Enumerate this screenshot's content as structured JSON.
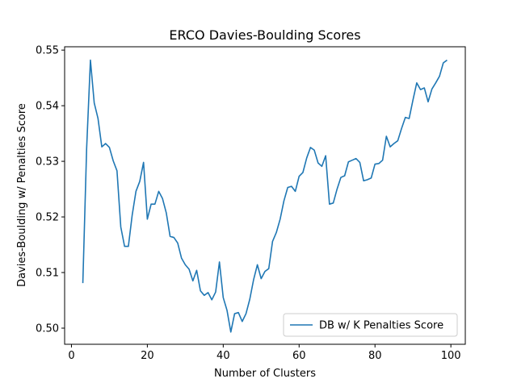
{
  "chart_data": {
    "type": "line",
    "title": "ERCO Davies-Boulding Scores",
    "xlabel": "Number of Clusters",
    "ylabel": "Davies-Boulding w/ Penalties Score",
    "xlim": [
      -1.8,
      103.8
    ],
    "ylim": [
      0.4971,
      0.5506
    ],
    "xticks": [
      0,
      20,
      40,
      60,
      80,
      100
    ],
    "yticks": [
      0.5,
      0.51,
      0.52,
      0.53,
      0.54,
      0.55
    ],
    "ytick_labels": [
      "0.50",
      "0.51",
      "0.52",
      "0.53",
      "0.54",
      "0.55"
    ],
    "grid": false,
    "legend_position": "lower-right",
    "series": [
      {
        "name": "DB w/ K Penalties Score",
        "color": "#1f77b4",
        "x": [
          3,
          4,
          5,
          6,
          7,
          8,
          9,
          10,
          11,
          12,
          13,
          14,
          15,
          16,
          17,
          18,
          19,
          20,
          21,
          22,
          23,
          24,
          25,
          26,
          27,
          28,
          29,
          30,
          31,
          32,
          33,
          34,
          35,
          36,
          37,
          38,
          39,
          40,
          41,
          42,
          43,
          44,
          45,
          46,
          47,
          48,
          49,
          50,
          51,
          52,
          53,
          54,
          55,
          56,
          57,
          58,
          59,
          60,
          61,
          62,
          63,
          64,
          65,
          66,
          67,
          68,
          69,
          70,
          71,
          72,
          73,
          74,
          75,
          76,
          77,
          78,
          79,
          80,
          81,
          82,
          83,
          84,
          85,
          86,
          87,
          88,
          89,
          90,
          91,
          92,
          93,
          94,
          95,
          96,
          97,
          98,
          99
        ],
        "values": [
          0.5081,
          0.5323,
          0.5482,
          0.5405,
          0.5377,
          0.5326,
          0.5332,
          0.5325,
          0.5301,
          0.5283,
          0.5182,
          0.5147,
          0.5147,
          0.5203,
          0.5246,
          0.5264,
          0.5298,
          0.5196,
          0.5223,
          0.5223,
          0.5246,
          0.5233,
          0.5207,
          0.5165,
          0.5163,
          0.5153,
          0.5126,
          0.5114,
          0.5106,
          0.5085,
          0.5104,
          0.5067,
          0.5059,
          0.5064,
          0.5051,
          0.5065,
          0.5119,
          0.5055,
          0.5032,
          0.4993,
          0.5026,
          0.5028,
          0.5012,
          0.5026,
          0.5052,
          0.5087,
          0.5114,
          0.5089,
          0.5102,
          0.5107,
          0.5156,
          0.5172,
          0.5196,
          0.5229,
          0.5253,
          0.5255,
          0.5246,
          0.5273,
          0.528,
          0.5306,
          0.5325,
          0.532,
          0.5297,
          0.5291,
          0.531,
          0.5223,
          0.5225,
          0.525,
          0.5271,
          0.5274,
          0.5299,
          0.5302,
          0.5305,
          0.5298,
          0.5265,
          0.5267,
          0.527,
          0.5295,
          0.5296,
          0.5302,
          0.5345,
          0.5326,
          0.5332,
          0.5337,
          0.5359,
          0.5379,
          0.5377,
          0.541,
          0.5441,
          0.5429,
          0.5432,
          0.5407,
          0.543,
          0.5441,
          0.5453,
          0.5477,
          0.5482
        ]
      }
    ]
  }
}
